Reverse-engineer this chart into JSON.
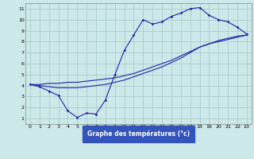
{
  "xlabel": "Graphe des températures (°c)",
  "background_color": "#cce8e8",
  "grid_color": "#aacccc",
  "line_color": "#2222aa",
  "xlim": [
    -0.5,
    23.5
  ],
  "ylim": [
    0.5,
    11.5
  ],
  "xticks": [
    0,
    1,
    2,
    3,
    4,
    5,
    6,
    7,
    8,
    9,
    10,
    11,
    12,
    13,
    14,
    15,
    16,
    17,
    18,
    19,
    20,
    21,
    22,
    23
  ],
  "yticks": [
    1,
    2,
    3,
    4,
    5,
    6,
    7,
    8,
    9,
    10,
    11
  ],
  "line1_x": [
    0,
    1,
    2,
    3,
    4,
    5,
    6,
    7,
    8,
    9,
    10,
    11,
    12,
    13,
    14,
    15,
    16,
    17,
    18,
    19,
    20,
    21,
    22,
    23
  ],
  "line1_y": [
    4.1,
    3.9,
    3.5,
    3.1,
    1.7,
    1.1,
    1.5,
    1.4,
    2.7,
    5.0,
    7.2,
    8.6,
    10.0,
    9.6,
    9.8,
    10.3,
    10.6,
    11.0,
    11.1,
    10.4,
    10.0,
    9.8,
    9.3,
    8.7
  ],
  "line2_x": [
    0,
    1,
    2,
    3,
    4,
    5,
    6,
    7,
    8,
    9,
    10,
    11,
    12,
    13,
    14,
    15,
    16,
    17,
    18,
    19,
    20,
    21,
    22,
    23
  ],
  "line2_y": [
    4.1,
    4.1,
    4.2,
    4.2,
    4.3,
    4.3,
    4.4,
    4.5,
    4.6,
    4.7,
    4.9,
    5.1,
    5.4,
    5.7,
    6.0,
    6.3,
    6.7,
    7.1,
    7.5,
    7.8,
    8.0,
    8.2,
    8.4,
    8.6
  ],
  "line3_x": [
    0,
    1,
    2,
    3,
    4,
    5,
    6,
    7,
    8,
    9,
    10,
    11,
    12,
    13,
    14,
    15,
    16,
    17,
    18,
    19,
    20,
    21,
    22,
    23
  ],
  "line3_y": [
    4.1,
    4.0,
    3.9,
    3.8,
    3.8,
    3.8,
    3.9,
    4.0,
    4.1,
    4.3,
    4.5,
    4.8,
    5.1,
    5.4,
    5.7,
    6.1,
    6.5,
    7.0,
    7.5,
    7.8,
    8.1,
    8.3,
    8.5,
    8.6
  ],
  "xlabel_color": "#000088",
  "xlabel_bg": "#3355bb",
  "spine_color": "#888888"
}
